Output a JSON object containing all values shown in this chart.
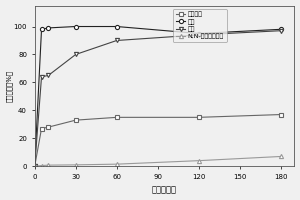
{
  "title": "",
  "xlabel": "时间（秒）",
  "ylabel": "荆光强度（%）",
  "xlim": [
    0,
    190
  ],
  "ylim": [
    0,
    115
  ],
  "xticks": [
    0,
    30,
    60,
    90,
    120,
    150,
    180
  ],
  "yticks": [
    0,
    20,
    40,
    60,
    80,
    100
  ],
  "series": [
    {
      "label": "二氯甲烷",
      "marker": "s",
      "x": [
        0,
        5,
        10,
        30,
        60,
        120,
        180
      ],
      "y": [
        0,
        27,
        28,
        33,
        35,
        35,
        37
      ],
      "color": "#666666",
      "linestyle": "-"
    },
    {
      "label": "甲苯",
      "marker": "o",
      "x": [
        0,
        5,
        10,
        30,
        60,
        120,
        180
      ],
      "y": [
        0,
        98,
        99,
        100,
        100,
        95,
        98
      ],
      "color": "#222222",
      "linestyle": "-"
    },
    {
      "label": "甲醇",
      "marker": "v",
      "x": [
        0,
        5,
        10,
        30,
        60,
        120,
        180
      ],
      "y": [
        0,
        64,
        65,
        80,
        90,
        94,
        97
      ],
      "color": "#444444",
      "linestyle": "-"
    },
    {
      "label": "N,N-二甲基甲酰胺",
      "marker": "^",
      "x": [
        0,
        5,
        10,
        30,
        60,
        120,
        180
      ],
      "y": [
        0,
        0.5,
        0.8,
        1.0,
        1.5,
        4,
        7
      ],
      "color": "#999999",
      "linestyle": "-"
    }
  ],
  "background_color": "#f0f0f0"
}
